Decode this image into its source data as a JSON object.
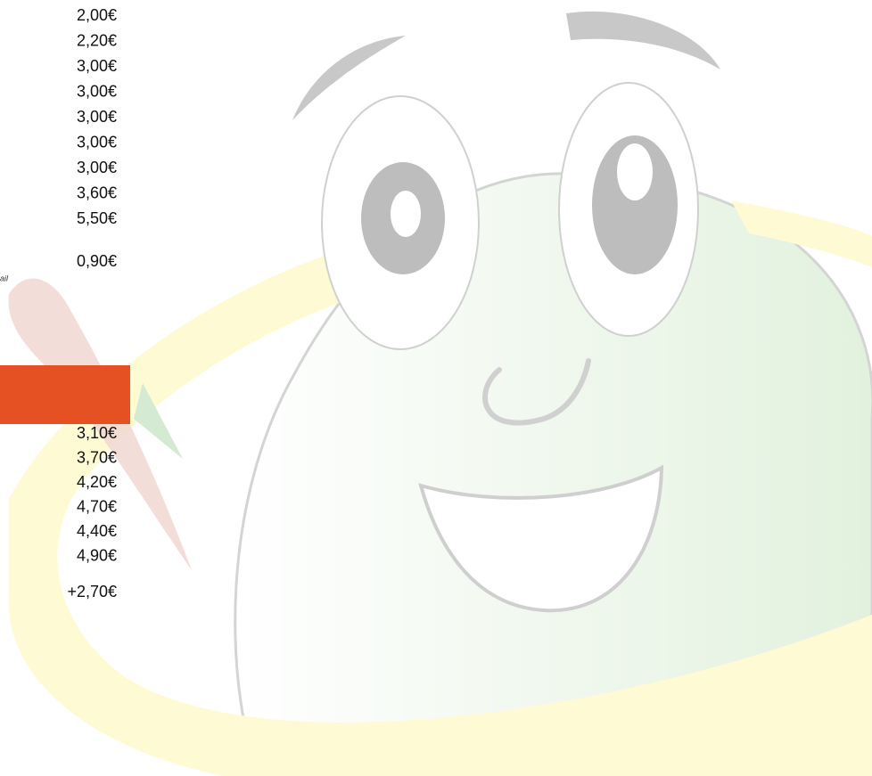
{
  "prices_top": [
    "2,00€",
    "2,20€",
    "3,00€",
    "3,00€",
    "3,00€",
    "3,00€",
    "3,00€",
    "3,60€",
    "5,50€"
  ],
  "extra_top": "0,90€",
  "fragment": "ail",
  "prices_bottom": [
    "3,10€",
    "3,70€",
    "4,20€",
    "4,70€",
    "4,40€",
    "4,90€"
  ],
  "extra_bottom": "+2,70€"
}
